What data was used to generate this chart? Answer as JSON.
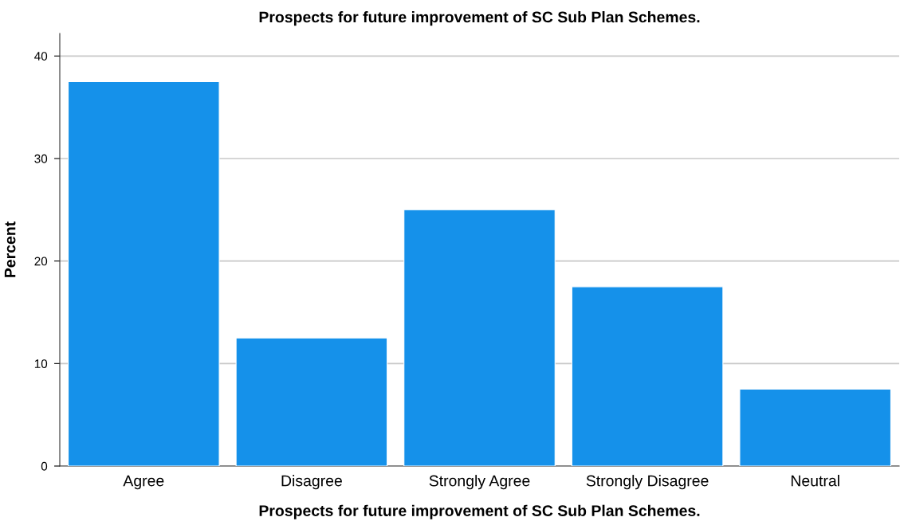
{
  "chart_data": {
    "type": "bar",
    "title": "Prospects for future improvement of SC Sub Plan Schemes.",
    "xlabel": "Prospects for future improvement of SC Sub Plan Schemes.",
    "ylabel": "Percent",
    "categories": [
      "Agree",
      "Disagree",
      "Strongly Agree",
      "Strongly Disagree",
      "Neutral"
    ],
    "values": [
      37.5,
      12.5,
      25,
      17.5,
      7.5
    ],
    "color": "#1591ea",
    "ylim": [
      0,
      42.2
    ],
    "yticks": [
      0,
      10,
      20,
      30,
      40
    ],
    "grid": "y",
    "legend": false
  }
}
